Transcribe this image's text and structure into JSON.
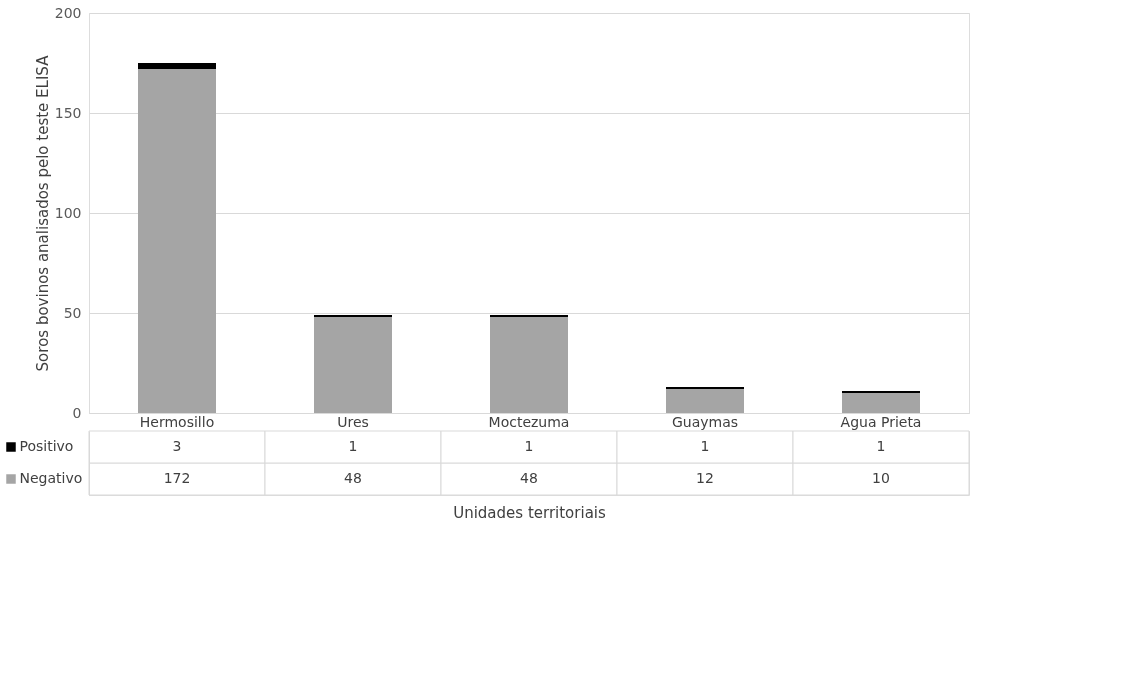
{
  "chart_data": {
    "type": "bar",
    "stacked": true,
    "xlabel": "Unidades territoriais",
    "ylabel": "Soros bovinos analisados pelo teste ELISA",
    "categories": [
      "Hermosillo",
      "Ures",
      "Moctezuma",
      "Guaymas",
      "Agua Prieta"
    ],
    "series": [
      {
        "name": "Negativo",
        "color": "#a5a5a5",
        "values": [
          172,
          48,
          48,
          12,
          10
        ]
      },
      {
        "name": "Positivo",
        "color": "#000000",
        "values": [
          3,
          1,
          1,
          1,
          1
        ]
      }
    ],
    "ylim": [
      0,
      200
    ],
    "yticks": [
      0,
      50,
      100,
      150,
      200
    ],
    "grid": "y",
    "legend": "bottom left",
    "data_labels": true
  }
}
